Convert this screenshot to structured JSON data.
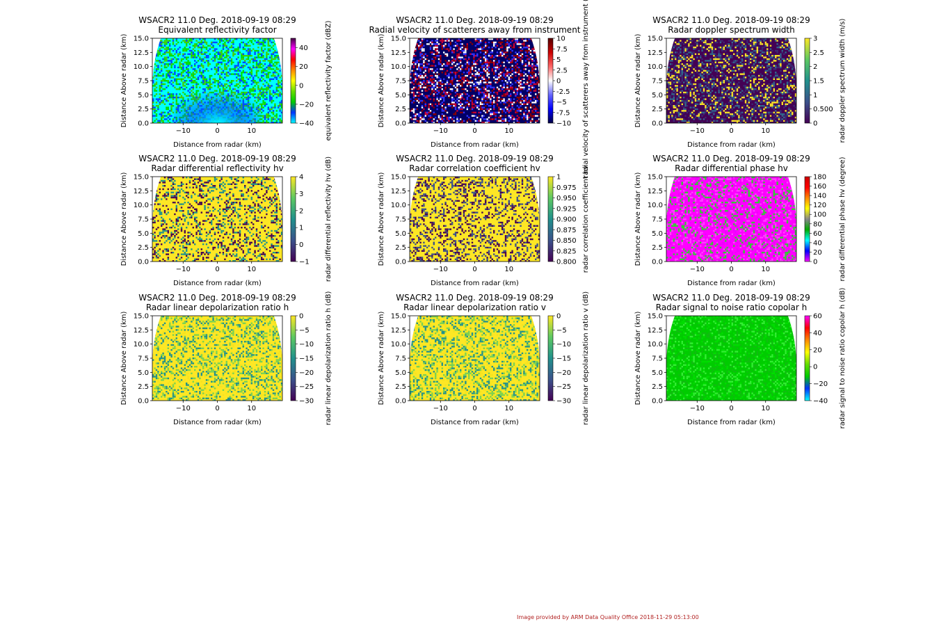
{
  "credit": "Image provided by ARM Data Quality Office 2018-11-29 05:13:00",
  "chart_data": [
    {
      "type": "heatmap",
      "title": "WSACR2 11.0 Deg. 2018-09-19 08:29",
      "subtitle": "Equivalent reflectivity factor",
      "xlabel": "Distance from radar (km)",
      "ylabel": "Distance Above radar (km)",
      "xlim": [
        -19,
        19
      ],
      "ylim": [
        0,
        15
      ],
      "xticks": [
        -10,
        0,
        10
      ],
      "yticks": [
        0.0,
        2.5,
        5.0,
        7.5,
        10.0,
        12.5,
        15.0
      ],
      "colorbar": {
        "label": "equivalent reflectivity factor (dBZ)",
        "ticks": [
          -40,
          -20,
          0,
          20,
          40
        ],
        "range": [
          -40,
          50
        ]
      },
      "colors": [
        "#00ffff",
        "#0044ff",
        "#00dd00",
        "#44cc00"
      ]
    },
    {
      "type": "heatmap",
      "title": "WSACR2 11.0 Deg. 2018-09-19 08:29",
      "subtitle": "Radial velocity of scatterers away from instrument",
      "xlabel": "Distance from radar (km)",
      "ylabel": "Distance Above radar (km)",
      "xlim": [
        -19,
        19
      ],
      "ylim": [
        0,
        15
      ],
      "xticks": [
        -10,
        0,
        10
      ],
      "yticks": [
        0.0,
        2.5,
        5.0,
        7.5,
        10.0,
        12.5,
        15.0
      ],
      "colorbar": {
        "label": "radial velocity of scatterers away from instrument (m/s)",
        "ticks": [
          -10.0,
          -7.5,
          -5.0,
          -2.5,
          0.0,
          2.5,
          5.0,
          7.5,
          10.0
        ],
        "range": [
          -10,
          10
        ]
      },
      "colors": [
        "#000066",
        "#8b0000",
        "#cc0033",
        "#ffffff",
        "#3333ff"
      ]
    },
    {
      "type": "heatmap",
      "title": "WSACR2 11.0 Deg. 2018-09-19 08:29",
      "subtitle": "Radar doppler spectrum width",
      "xlabel": "Distance from radar (km)",
      "ylabel": "Distance Above radar (km)",
      "xlim": [
        -19,
        19
      ],
      "ylim": [
        0,
        15
      ],
      "xticks": [
        -10,
        0,
        10
      ],
      "yticks": [
        0.0,
        2.5,
        5.0,
        7.5,
        10.0,
        12.5,
        15.0
      ],
      "colorbar": {
        "label": "radar doppler spectrum width (m/s)",
        "ticks": [
          0.0,
          0.5,
          1.0,
          1.5,
          2.0,
          2.5,
          3.0
        ],
        "range": [
          0,
          3
        ]
      },
      "colors": [
        "#440154",
        "#3b2a72",
        "#31688e",
        "#fde725"
      ]
    },
    {
      "type": "heatmap",
      "title": "WSACR2 11.0 Deg. 2018-09-19 08:29",
      "subtitle": "Radar differential reflectivity hv",
      "xlabel": "Distance from radar (km)",
      "ylabel": "Distance Above radar (km)",
      "xlim": [
        -19,
        19
      ],
      "ylim": [
        0,
        15
      ],
      "xticks": [
        -10,
        0,
        10
      ],
      "yticks": [
        0.0,
        2.5,
        5.0,
        7.5,
        10.0,
        12.5,
        15.0
      ],
      "colorbar": {
        "label": "radar differential reflectivity hv (dB)",
        "ticks": [
          -1,
          0,
          1,
          2,
          3,
          4
        ],
        "range": [
          -1,
          4
        ]
      },
      "colors": [
        "#fde725",
        "#440154",
        "#21918c",
        "#fde725"
      ]
    },
    {
      "type": "heatmap",
      "title": "WSACR2 11.0 Deg. 2018-09-19 08:29",
      "subtitle": "Radar correlation coefficient hv",
      "xlabel": "Distance from radar (km)",
      "ylabel": "Distance Above radar (km)",
      "xlim": [
        -19,
        19
      ],
      "ylim": [
        0,
        15
      ],
      "xticks": [
        -10,
        0,
        10
      ],
      "yticks": [
        0.0,
        2.5,
        5.0,
        7.5,
        10.0,
        12.5,
        15.0
      ],
      "colorbar": {
        "label": "radar correlation coefficient hv",
        "ticks": [
          0.8,
          0.825,
          0.85,
          0.875,
          0.9,
          0.925,
          0.95,
          0.975,
          1.0
        ],
        "range": [
          0.8,
          1.0
        ]
      },
      "colors": [
        "#fde725",
        "#440154",
        "#3b528b",
        "#fde725"
      ]
    },
    {
      "type": "heatmap",
      "title": "WSACR2 11.0 Deg. 2018-09-19 08:29",
      "subtitle": "Radar differential phase hv",
      "xlabel": "Distance from radar (km)",
      "ylabel": "Distance Above radar (km)",
      "xlim": [
        -19,
        19
      ],
      "ylim": [
        0,
        15
      ],
      "xticks": [
        -10,
        0,
        10
      ],
      "yticks": [
        0.0,
        2.5,
        5.0,
        7.5,
        10.0,
        12.5,
        15.0
      ],
      "colorbar": {
        "label": "radar differential phase hv (degree)",
        "ticks": [
          0,
          20,
          40,
          60,
          80,
          100,
          120,
          140,
          160,
          180
        ],
        "range": [
          0,
          180
        ]
      },
      "colors": [
        "#ff00ff",
        "#ee00ff",
        "#ff44ff",
        "#33cc33"
      ]
    },
    {
      "type": "heatmap",
      "title": "WSACR2 11.0 Deg. 2018-09-19 08:29",
      "subtitle": "Radar linear depolarization ratio h",
      "xlabel": "Distance from radar (km)",
      "ylabel": "Distance Above radar (km)",
      "xlim": [
        -19,
        19
      ],
      "ylim": [
        0,
        15
      ],
      "xticks": [
        -10,
        0,
        10
      ],
      "yticks": [
        0.0,
        2.5,
        5.0,
        7.5,
        10.0,
        12.5,
        15.0
      ],
      "colorbar": {
        "label": "radar linear depolarization ratio h (dB)",
        "ticks": [
          -30,
          -25,
          -20,
          -15,
          -10,
          -5,
          0
        ],
        "range": [
          -30,
          0
        ]
      },
      "colors": [
        "#fde725",
        "#f5e31f",
        "#7ad151",
        "#21918c"
      ]
    },
    {
      "type": "heatmap",
      "title": "WSACR2 11.0 Deg. 2018-09-19 08:29",
      "subtitle": "Radar linear depolarization ratio v",
      "xlabel": "Distance from radar (km)",
      "ylabel": "Distance Above radar (km)",
      "xlim": [
        -19,
        19
      ],
      "ylim": [
        0,
        15
      ],
      "xticks": [
        -10,
        0,
        10
      ],
      "yticks": [
        0.0,
        2.5,
        5.0,
        7.5,
        10.0,
        12.5,
        15.0
      ],
      "colorbar": {
        "label": "radar linear depolarization ratio v (dB)",
        "ticks": [
          -30,
          -25,
          -20,
          -15,
          -10,
          -5,
          0
        ],
        "range": [
          -30,
          0
        ]
      },
      "colors": [
        "#fde725",
        "#f5e31f",
        "#7ad151",
        "#21918c"
      ]
    },
    {
      "type": "heatmap",
      "title": "WSACR2 11.0 Deg. 2018-09-19 08:29",
      "subtitle": "Radar signal to noise ratio copolar h",
      "xlabel": "Distance from radar (km)",
      "ylabel": "Distance Above radar (km)",
      "xlim": [
        -19,
        19
      ],
      "ylim": [
        0,
        15
      ],
      "xticks": [
        -10,
        0,
        10
      ],
      "yticks": [
        0.0,
        2.5,
        5.0,
        7.5,
        10.0,
        12.5,
        15.0
      ],
      "colorbar": {
        "label": "radar signal to noise ratio copolar h (dB)",
        "ticks": [
          -40,
          -20,
          0,
          20,
          40,
          60
        ],
        "range": [
          -40,
          60
        ]
      },
      "colors": [
        "#00cc00",
        "#00dd00",
        "#11bb11",
        "#33ee33"
      ]
    }
  ]
}
